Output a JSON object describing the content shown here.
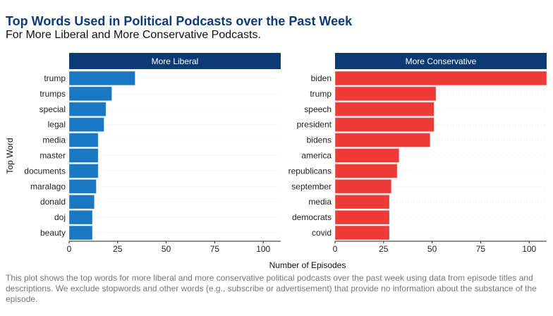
{
  "title": "Top Words Used in Political Podcasts over the Past Week",
  "subtitle": "For More Liberal and More Conservative Podcasts.",
  "caption": "This plot shows the top words for more liberal and more conservative political podcasts over the past week using data from episode titles and descriptions. We exclude stopwords and other words (e.g., subscribe or advertisement) that provide no information about the substance of the episode.",
  "chart_data": {
    "type": "bar",
    "orientation": "horizontal",
    "xlabel": "Number of Episodes",
    "ylabel": "Top Word",
    "xlim": [
      0,
      109
    ],
    "xticks": [
      0,
      25,
      50,
      75,
      100
    ],
    "grid": "horizontal dotted",
    "panels": [
      {
        "name": "More Liberal",
        "color": "#1a78c2",
        "categories": [
          "trump",
          "trumps",
          "special",
          "legal",
          "media",
          "master",
          "documents",
          "maralago",
          "donald",
          "doj",
          "beauty"
        ],
        "values": [
          34,
          22,
          19,
          18,
          15,
          15,
          15,
          14,
          13,
          12,
          12
        ]
      },
      {
        "name": "More Conservative",
        "color": "#ee3b37",
        "categories": [
          "biden",
          "trump",
          "speech",
          "president",
          "bidens",
          "america",
          "republicans",
          "september",
          "media",
          "democrats",
          "covid"
        ],
        "values": [
          109,
          52,
          51,
          51,
          49,
          33,
          32,
          29,
          28,
          28,
          28
        ]
      }
    ]
  }
}
